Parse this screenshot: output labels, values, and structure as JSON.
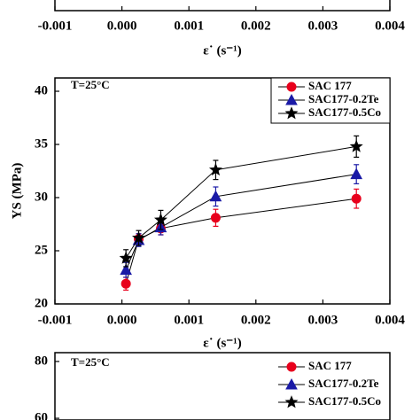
{
  "chart_data": [
    {
      "type": "line",
      "xlim": [
        -0.001,
        0.004
      ],
      "xticks": [
        -0.001,
        {
          "value": 0,
          "label": "0.000"
        },
        0.001,
        0.002,
        0.003,
        0.004
      ],
      "xlabel": "ε˙ (s⁻¹)"
    },
    {
      "type": "line",
      "annotation": "T=25°C",
      "xlim": [
        -0.001,
        0.004
      ],
      "xticks": [
        -0.001,
        {
          "value": 0,
          "label": "0.000"
        },
        0.001,
        0.002,
        0.003,
        0.004
      ],
      "xlabel": "ε˙ (s⁻¹)",
      "ylabel": "YS (MPa)",
      "ylim": [
        20,
        41.25
      ],
      "yticks": [
        20,
        25,
        30,
        35,
        40
      ],
      "line_color": "#000000",
      "legend": "upper right",
      "x": [
        6e-05,
        0.00025,
        0.00058,
        0.0014,
        0.0035
      ],
      "series": [
        {
          "name": "SAC 177",
          "color": "#e8001c",
          "marker": "circle",
          "values": [
            21.9,
            26.1,
            27.1,
            28.1,
            29.9
          ],
          "errors": [
            0.6,
            0.5,
            0.6,
            0.8,
            0.9
          ]
        },
        {
          "name": "SAC177-0.2Te",
          "color": "#1a1aa6",
          "marker": "triangle",
          "values": [
            23.2,
            26.0,
            27.2,
            30.1,
            32.2
          ],
          "errors": [
            0.7,
            0.6,
            0.7,
            0.9,
            0.9
          ]
        },
        {
          "name": "SAC177-0.5Co",
          "color": "#000000",
          "marker": "star",
          "values": [
            24.3,
            26.2,
            27.9,
            32.6,
            34.8
          ],
          "errors": [
            0.8,
            0.7,
            0.9,
            0.9,
            1.0
          ]
        }
      ]
    },
    {
      "type": "line",
      "annotation": "T=25°C",
      "ylim": [
        59.4,
        83.1
      ],
      "yticks": [
        60,
        80
      ],
      "line_color": "#000000",
      "legend": "upper right",
      "series": [
        {
          "name": "SAC 177",
          "color": "#e8001c",
          "marker": "circle"
        },
        {
          "name": "SAC177-0.2Te",
          "color": "#1a1aa6",
          "marker": "triangle"
        },
        {
          "name": "SAC177-0.5Co",
          "color": "#000000",
          "marker": "star"
        }
      ]
    }
  ]
}
